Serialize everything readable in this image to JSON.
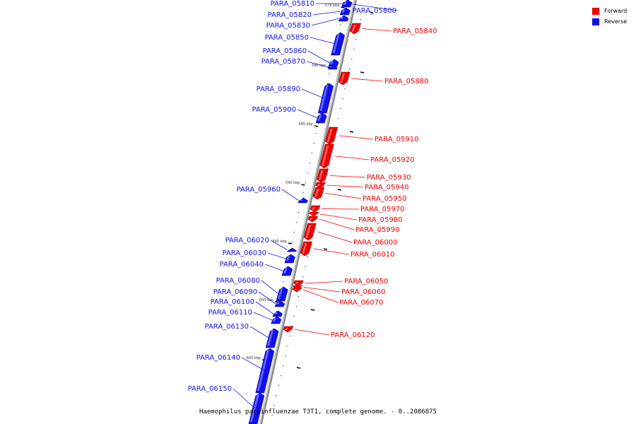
{
  "caption": "Haemophilus parainfluenzae T3T1, complete genome. - 0..2086875",
  "legend": {
    "forward": {
      "label": "Forward",
      "color": "#ee0000"
    },
    "reverse": {
      "label": "Reverse",
      "color": "#1111ee"
    }
  },
  "ticks": [
    "579 kbp",
    "580 kbp",
    "585 kbp",
    "590 kbp",
    "595 kbp",
    "600 kbp",
    "605 kbp"
  ],
  "genes": [
    {
      "name": "PARA_05800",
      "strand": "reverse"
    },
    {
      "name": "PARA_05810",
      "strand": "reverse"
    },
    {
      "name": "PARA_05820",
      "strand": "reverse"
    },
    {
      "name": "PARA_05830",
      "strand": "reverse"
    },
    {
      "name": "PARA_05840",
      "strand": "forward"
    },
    {
      "name": "PARA_05850",
      "strand": "reverse"
    },
    {
      "name": "PARA_05860",
      "strand": "reverse"
    },
    {
      "name": "PARA_05870",
      "strand": "reverse"
    },
    {
      "name": "PARA_05880",
      "strand": "forward"
    },
    {
      "name": "PARA_05890",
      "strand": "reverse"
    },
    {
      "name": "PARA_05900",
      "strand": "reverse"
    },
    {
      "name": "PARA_05910",
      "strand": "forward"
    },
    {
      "name": "PARA_05920",
      "strand": "forward"
    },
    {
      "name": "PARA_05930",
      "strand": "forward"
    },
    {
      "name": "PARA_05940",
      "strand": "forward"
    },
    {
      "name": "PARA_05950",
      "strand": "forward"
    },
    {
      "name": "PARA_05960",
      "strand": "reverse"
    },
    {
      "name": "PARA_05970",
      "strand": "forward"
    },
    {
      "name": "PARA_05980",
      "strand": "forward"
    },
    {
      "name": "PARA_05990",
      "strand": "forward"
    },
    {
      "name": "PARA_06000",
      "strand": "forward"
    },
    {
      "name": "PARA_06010",
      "strand": "forward"
    },
    {
      "name": "PARA_06020",
      "strand": "reverse"
    },
    {
      "name": "PARA_06030",
      "strand": "reverse"
    },
    {
      "name": "PARA_06040",
      "strand": "reverse"
    },
    {
      "name": "PARA_06050",
      "strand": "forward"
    },
    {
      "name": "PARA_06060",
      "strand": "forward"
    },
    {
      "name": "PARA_06070",
      "strand": "forward"
    },
    {
      "name": "PARA_06080",
      "strand": "reverse"
    },
    {
      "name": "PARA_06090",
      "strand": "reverse"
    },
    {
      "name": "PARA_06100",
      "strand": "reverse"
    },
    {
      "name": "PARA_06110",
      "strand": "reverse"
    },
    {
      "name": "PARA_06120",
      "strand": "forward"
    },
    {
      "name": "PARA_06130",
      "strand": "reverse"
    },
    {
      "name": "PARA_06140",
      "strand": "reverse"
    },
    {
      "name": "PARA_06150",
      "strand": "reverse"
    }
  ]
}
